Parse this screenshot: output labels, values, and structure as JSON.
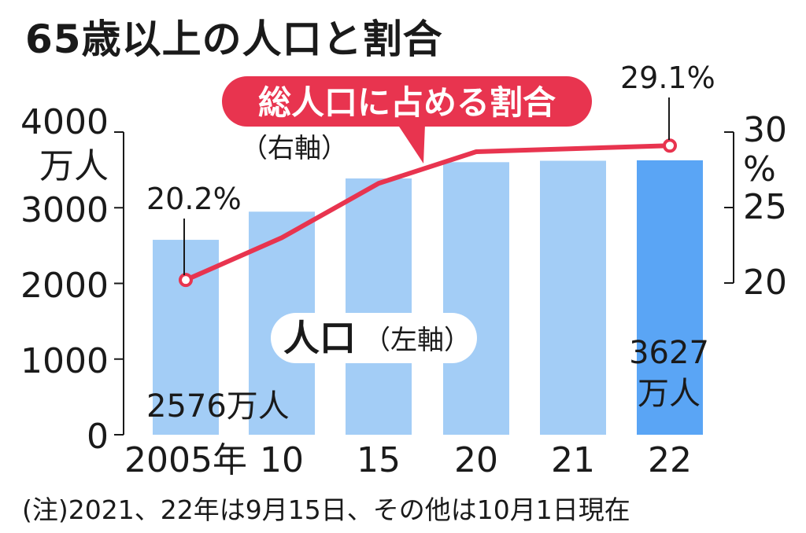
{
  "title": "65歳以上の人口と割合",
  "note": "(注)2021、22年は9月15日、その他は10月1日現在",
  "colors": {
    "bar": "#a3cdf6",
    "bar_highlight": "#5aa5f5",
    "line": "#e8344f",
    "axis": "#1a1a1a"
  },
  "chart_data": {
    "type": "bar",
    "categories": [
      "2005年",
      "10",
      "15",
      "20",
      "21",
      "22"
    ],
    "series": [
      {
        "axis": "left",
        "type": "bar",
        "values": [
          2576,
          2948,
          3387,
          3602,
          3621,
          3627
        ]
      },
      {
        "axis": "right",
        "type": "line",
        "values": [
          20.2,
          23.0,
          26.6,
          28.7,
          28.9,
          29.1
        ]
      }
    ],
    "left_axis": {
      "ylim": [
        0,
        4000
      ],
      "ticks": [
        "0",
        "1000",
        "2000",
        "3000",
        "4000"
      ],
      "unit": "万人"
    },
    "right_axis": {
      "ylim": [
        20,
        30
      ],
      "ticks": [
        "20",
        "25",
        "30"
      ],
      "unit": "%"
    },
    "highlight_index": 5,
    "labels": {
      "line_name": "総人口に占める割合",
      "line_axis_note": "（右軸）",
      "bar_name": "人口",
      "bar_axis_note": "（左軸）",
      "first_bar_value": "2576万人",
      "last_bar_value_line1": "3627",
      "last_bar_value_line2": "万人",
      "first_point_value": "20.2%",
      "last_point_value": "29.1%"
    }
  }
}
